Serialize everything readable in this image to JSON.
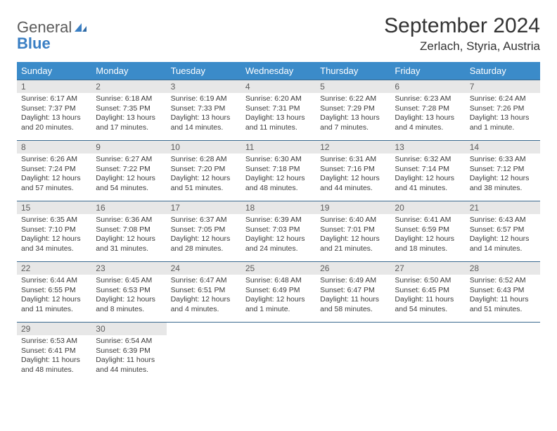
{
  "logo": {
    "word1": "General",
    "word2": "Blue"
  },
  "title": "September 2024",
  "location": "Zerlach, Styria, Austria",
  "colors": {
    "header_bg": "#3b8bc9",
    "header_text": "#ffffff",
    "daynum_bg": "#e7e7e7",
    "daynum_text": "#5c5c5c",
    "row_border": "#3b6a8f",
    "body_text": "#3c3c3c",
    "logo_gray": "#5b5b5b",
    "logo_blue": "#3a7fc4"
  },
  "weekdays": [
    "Sunday",
    "Monday",
    "Tuesday",
    "Wednesday",
    "Thursday",
    "Friday",
    "Saturday"
  ],
  "days": [
    {
      "n": "1",
      "sunrise": "6:17 AM",
      "sunset": "7:37 PM",
      "daylight": "13 hours and 20 minutes."
    },
    {
      "n": "2",
      "sunrise": "6:18 AM",
      "sunset": "7:35 PM",
      "daylight": "13 hours and 17 minutes."
    },
    {
      "n": "3",
      "sunrise": "6:19 AM",
      "sunset": "7:33 PM",
      "daylight": "13 hours and 14 minutes."
    },
    {
      "n": "4",
      "sunrise": "6:20 AM",
      "sunset": "7:31 PM",
      "daylight": "13 hours and 11 minutes."
    },
    {
      "n": "5",
      "sunrise": "6:22 AM",
      "sunset": "7:29 PM",
      "daylight": "13 hours and 7 minutes."
    },
    {
      "n": "6",
      "sunrise": "6:23 AM",
      "sunset": "7:28 PM",
      "daylight": "13 hours and 4 minutes."
    },
    {
      "n": "7",
      "sunrise": "6:24 AM",
      "sunset": "7:26 PM",
      "daylight": "13 hours and 1 minute."
    },
    {
      "n": "8",
      "sunrise": "6:26 AM",
      "sunset": "7:24 PM",
      "daylight": "12 hours and 57 minutes."
    },
    {
      "n": "9",
      "sunrise": "6:27 AM",
      "sunset": "7:22 PM",
      "daylight": "12 hours and 54 minutes."
    },
    {
      "n": "10",
      "sunrise": "6:28 AM",
      "sunset": "7:20 PM",
      "daylight": "12 hours and 51 minutes."
    },
    {
      "n": "11",
      "sunrise": "6:30 AM",
      "sunset": "7:18 PM",
      "daylight": "12 hours and 48 minutes."
    },
    {
      "n": "12",
      "sunrise": "6:31 AM",
      "sunset": "7:16 PM",
      "daylight": "12 hours and 44 minutes."
    },
    {
      "n": "13",
      "sunrise": "6:32 AM",
      "sunset": "7:14 PM",
      "daylight": "12 hours and 41 minutes."
    },
    {
      "n": "14",
      "sunrise": "6:33 AM",
      "sunset": "7:12 PM",
      "daylight": "12 hours and 38 minutes."
    },
    {
      "n": "15",
      "sunrise": "6:35 AM",
      "sunset": "7:10 PM",
      "daylight": "12 hours and 34 minutes."
    },
    {
      "n": "16",
      "sunrise": "6:36 AM",
      "sunset": "7:08 PM",
      "daylight": "12 hours and 31 minutes."
    },
    {
      "n": "17",
      "sunrise": "6:37 AM",
      "sunset": "7:05 PM",
      "daylight": "12 hours and 28 minutes."
    },
    {
      "n": "18",
      "sunrise": "6:39 AM",
      "sunset": "7:03 PM",
      "daylight": "12 hours and 24 minutes."
    },
    {
      "n": "19",
      "sunrise": "6:40 AM",
      "sunset": "7:01 PM",
      "daylight": "12 hours and 21 minutes."
    },
    {
      "n": "20",
      "sunrise": "6:41 AM",
      "sunset": "6:59 PM",
      "daylight": "12 hours and 18 minutes."
    },
    {
      "n": "21",
      "sunrise": "6:43 AM",
      "sunset": "6:57 PM",
      "daylight": "12 hours and 14 minutes."
    },
    {
      "n": "22",
      "sunrise": "6:44 AM",
      "sunset": "6:55 PM",
      "daylight": "12 hours and 11 minutes."
    },
    {
      "n": "23",
      "sunrise": "6:45 AM",
      "sunset": "6:53 PM",
      "daylight": "12 hours and 8 minutes."
    },
    {
      "n": "24",
      "sunrise": "6:47 AM",
      "sunset": "6:51 PM",
      "daylight": "12 hours and 4 minutes."
    },
    {
      "n": "25",
      "sunrise": "6:48 AM",
      "sunset": "6:49 PM",
      "daylight": "12 hours and 1 minute."
    },
    {
      "n": "26",
      "sunrise": "6:49 AM",
      "sunset": "6:47 PM",
      "daylight": "11 hours and 58 minutes."
    },
    {
      "n": "27",
      "sunrise": "6:50 AM",
      "sunset": "6:45 PM",
      "daylight": "11 hours and 54 minutes."
    },
    {
      "n": "28",
      "sunrise": "6:52 AM",
      "sunset": "6:43 PM",
      "daylight": "11 hours and 51 minutes."
    },
    {
      "n": "29",
      "sunrise": "6:53 AM",
      "sunset": "6:41 PM",
      "daylight": "11 hours and 48 minutes."
    },
    {
      "n": "30",
      "sunrise": "6:54 AM",
      "sunset": "6:39 PM",
      "daylight": "11 hours and 44 minutes."
    }
  ],
  "labels": {
    "sunrise": "Sunrise:",
    "sunset": "Sunset:",
    "daylight": "Daylight:"
  },
  "layout": {
    "columns": 7,
    "rows": 5,
    "start_offset": 0,
    "total_cells": 35
  }
}
